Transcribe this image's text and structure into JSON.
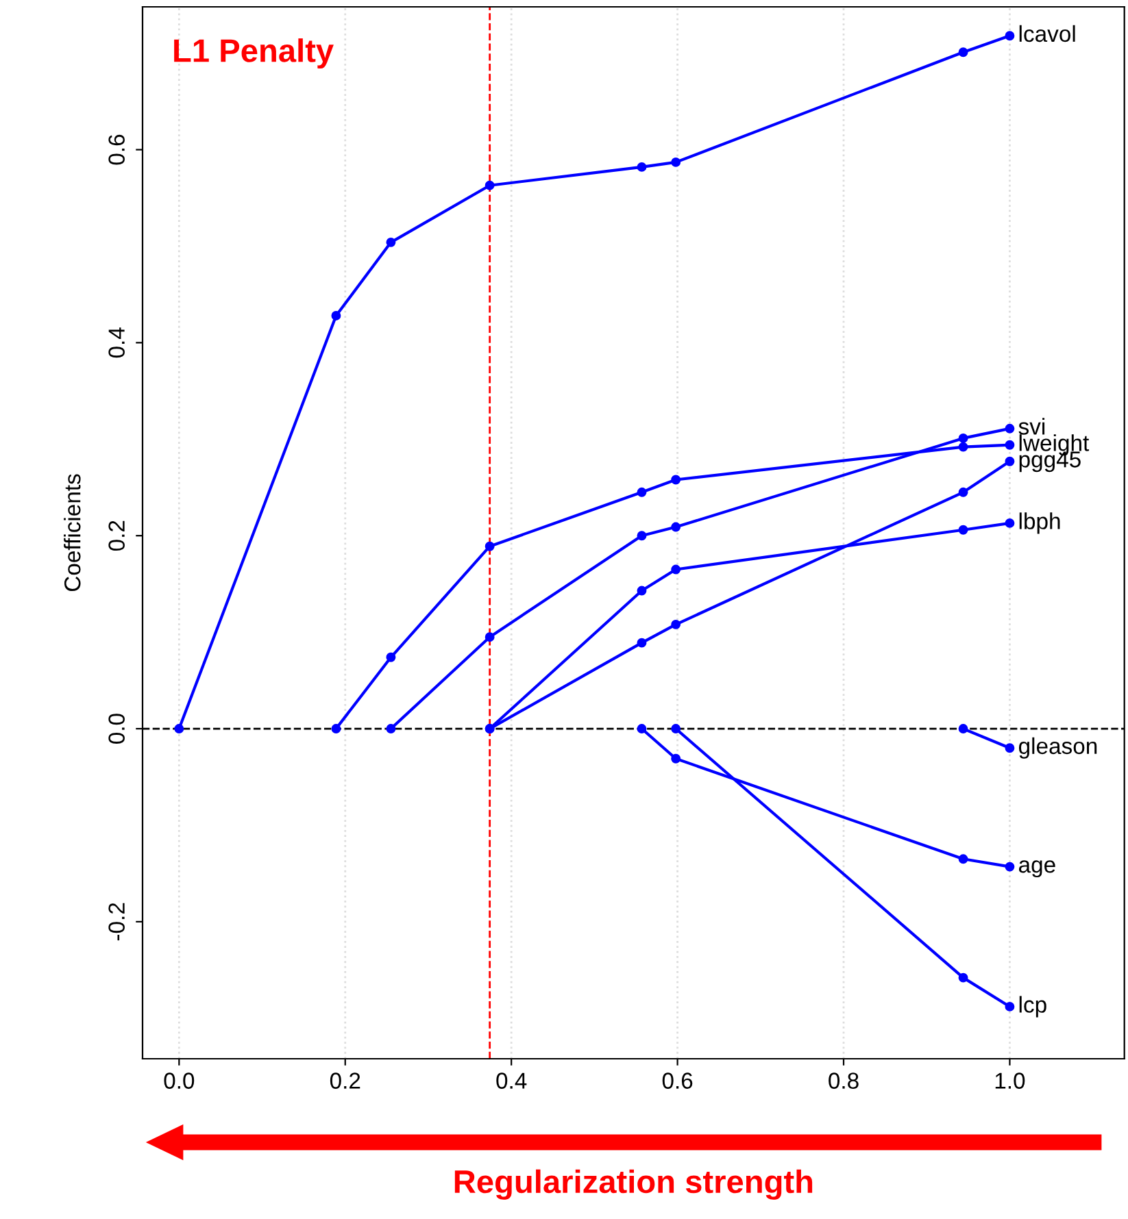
{
  "chart_data": {
    "type": "line",
    "title": "L1 Penalty",
    "xlabel": "Regularization strength",
    "ylabel": "Coefficients",
    "series": [
      {
        "name": "lcavol",
        "color": "#0000ff",
        "x": [
          0.0,
          0.189,
          0.255,
          0.374,
          0.557,
          0.598,
          0.944,
          1.0
        ],
        "values": [
          0.0,
          0.428,
          0.504,
          0.563,
          0.582,
          0.587,
          0.701,
          0.718
        ]
      },
      {
        "name": "svi",
        "color": "#0000ff",
        "x": [
          0.255,
          0.374,
          0.557,
          0.598,
          0.944,
          1.0
        ],
        "values": [
          0.0,
          0.095,
          0.2,
          0.209,
          0.301,
          0.311
        ]
      },
      {
        "name": "lweight",
        "color": "#0000ff",
        "x": [
          0.189,
          0.255,
          0.374,
          0.557,
          0.598,
          0.944,
          1.0
        ],
        "values": [
          0.0,
          0.074,
          0.189,
          0.245,
          0.258,
          0.292,
          0.294
        ]
      },
      {
        "name": "pgg45",
        "color": "#0000ff",
        "x": [
          0.374,
          0.557,
          0.598,
          0.944,
          1.0
        ],
        "values": [
          0.0,
          0.089,
          0.108,
          0.245,
          0.277
        ]
      },
      {
        "name": "lbph",
        "color": "#0000ff",
        "x": [
          0.374,
          0.557,
          0.598,
          0.944,
          1.0
        ],
        "values": [
          0.0,
          0.143,
          0.165,
          0.206,
          0.213
        ]
      },
      {
        "name": "gleason",
        "color": "#0000ff",
        "x": [
          0.944,
          1.0
        ],
        "values": [
          0.0,
          -0.02
        ]
      },
      {
        "name": "age",
        "color": "#0000ff",
        "x": [
          0.557,
          0.598,
          0.944,
          1.0
        ],
        "values": [
          0.0,
          -0.031,
          -0.135,
          -0.143
        ]
      },
      {
        "name": "lcp",
        "color": "#0000ff",
        "x": [
          0.598,
          0.944,
          1.0
        ],
        "values": [
          0.0,
          -0.258,
          -0.288
        ]
      }
    ],
    "xlim": [
      -0.044,
      1.138
    ],
    "ylim": [
      -0.342,
      0.748
    ],
    "xticks": [
      {
        "value": 0.0,
        "label": "0.0"
      },
      0.2,
      0.4,
      0.6,
      0.8,
      {
        "value": 1.0,
        "label": "1.0"
      }
    ],
    "yticks": [
      -0.2,
      {
        "value": 0.0,
        "label": "0.0"
      },
      0.2,
      0.4,
      0.6
    ],
    "ref_lines": [
      {
        "axis": "x",
        "value": 0.374,
        "color": "#ff0000",
        "line_style": "dashed"
      },
      {
        "axis": "y",
        "value": 0,
        "color": "#000000",
        "line_style": "dashed"
      }
    ],
    "grid": "x",
    "legend": false,
    "marker": "circle",
    "line_style": "solid"
  }
}
